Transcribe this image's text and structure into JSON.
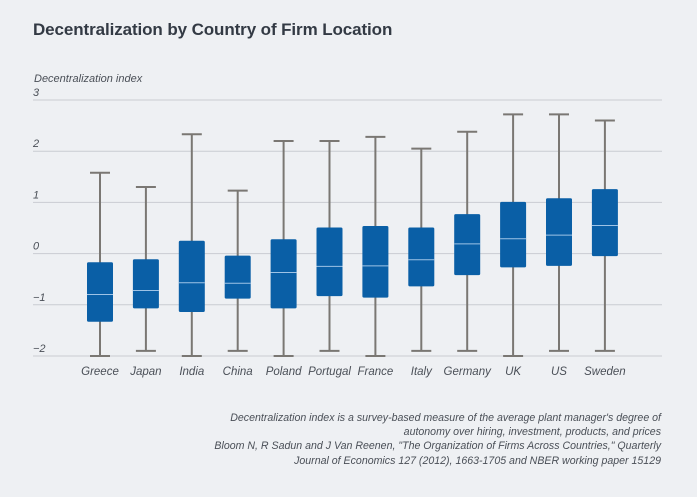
{
  "title": "Decentralization by Country of Firm Location",
  "notes": {
    "definition": "Decentralization index is a survey-based measure of the average plant manager's degree of autonomy over hiring, investment, products, and prices",
    "source": "Bloom N, R Sadun and J Van Reenen, \"The Organization of Firms Across Countries,\" Quarterly Journal of Economics 127 (2012), 1663-1705 and NBER working paper 15129"
  },
  "colors": {
    "box": "#0a5fa6",
    "whisker": "#7a7773",
    "grid": "#c9ccd2",
    "background": "#eef0f3"
  },
  "chart_data": {
    "type": "box",
    "ylabel": "Decentralization index",
    "xlabel": "",
    "ylim": [
      -2,
      3
    ],
    "yticks": [
      "3",
      "2",
      "1",
      "0",
      "−1",
      "−2"
    ],
    "ytick_values": [
      3,
      2,
      1,
      0,
      -1,
      -2
    ],
    "grid": true,
    "series": [
      {
        "category": "Greece",
        "min": -2.0,
        "q1": -1.33,
        "median": -0.8,
        "q3": -0.17,
        "max": 1.58
      },
      {
        "category": "Japan",
        "min": -1.9,
        "q1": -1.07,
        "median": -0.72,
        "q3": -0.11,
        "max": 1.3
      },
      {
        "category": "India",
        "min": -2.0,
        "q1": -1.14,
        "median": -0.57,
        "q3": 0.25,
        "max": 2.33
      },
      {
        "category": "China",
        "min": -1.9,
        "q1": -0.88,
        "median": -0.58,
        "q3": -0.04,
        "max": 1.23
      },
      {
        "category": "Poland",
        "min": -2.0,
        "q1": -1.07,
        "median": -0.37,
        "q3": 0.28,
        "max": 2.2
      },
      {
        "category": "Portugal",
        "min": -1.9,
        "q1": -0.83,
        "median": -0.25,
        "q3": 0.51,
        "max": 2.2
      },
      {
        "category": "France",
        "min": -2.0,
        "q1": -0.86,
        "median": -0.24,
        "q3": 0.54,
        "max": 2.28
      },
      {
        "category": "Italy",
        "min": -1.9,
        "q1": -0.64,
        "median": -0.12,
        "q3": 0.51,
        "max": 2.05
      },
      {
        "category": "Germany",
        "min": -1.9,
        "q1": -0.42,
        "median": 0.19,
        "q3": 0.77,
        "max": 2.38
      },
      {
        "category": "UK",
        "min": -2.0,
        "q1": -0.27,
        "median": 0.29,
        "q3": 1.01,
        "max": 2.72
      },
      {
        "category": "US",
        "min": -1.9,
        "q1": -0.24,
        "median": 0.36,
        "q3": 1.08,
        "max": 2.72
      },
      {
        "category": "Sweden",
        "min": -1.9,
        "q1": -0.05,
        "median": 0.55,
        "q3": 1.26,
        "max": 2.6
      }
    ]
  }
}
